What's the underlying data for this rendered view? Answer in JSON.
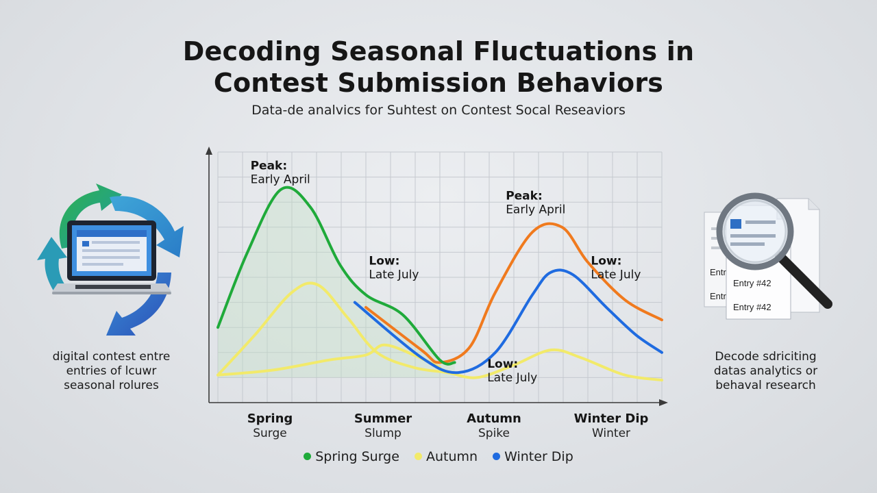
{
  "title_lines": [
    "Decoding Seasonal Fluctuations in",
    "Contest Submission Behaviors"
  ],
  "subtitle": "Data-de analvics for Suhtest on Contest Socal Reseaviors",
  "left_caption": [
    "digital contest entre",
    "entries of lcuwr",
    "seasonal rolures"
  ],
  "right_caption": [
    "Decode sdriciting",
    "datas analytics or",
    "behaval research"
  ],
  "icons": {
    "left": "laptop-cycle-icon",
    "right": "magnifier-documents-icon",
    "doc_labels": [
      "Entry #42",
      "Entry #42",
      "Entr",
      "Entr"
    ]
  },
  "colors": {
    "green": "#1faa3a",
    "yellow": "#f2ea6a",
    "orange": "#f07a1e",
    "blue": "#1f6be0",
    "axis": "#3a3a3a",
    "grid": "#c5c9cf"
  },
  "chart_data": {
    "type": "line",
    "xlabel": "",
    "ylabel": "",
    "grid": true,
    "categories": [
      {
        "line1": "Spring",
        "line2": "Surge"
      },
      {
        "line1": "Summer",
        "line2": "Slump"
      },
      {
        "line1": "Autumn",
        "line2": "Spike"
      },
      {
        "line1": "Winter Dip",
        "line2": "Winter"
      }
    ],
    "xlim": [
      0,
      12
    ],
    "ylim": [
      0,
      100
    ],
    "series": [
      {
        "name": "Spring Surge",
        "color": "#1faa3a",
        "points": [
          [
            0,
            30
          ],
          [
            0.8,
            60
          ],
          [
            1.7,
            85
          ],
          [
            2.5,
            78
          ],
          [
            3.3,
            55
          ],
          [
            4.0,
            43
          ],
          [
            5.0,
            35
          ],
          [
            6.0,
            17
          ],
          [
            6.4,
            16
          ]
        ]
      },
      {
        "name": "Autumn",
        "color": "#f2ea6a",
        "points": [
          [
            0,
            11
          ],
          [
            1.0,
            27
          ],
          [
            2.0,
            44
          ],
          [
            2.7,
            47
          ],
          [
            3.5,
            34
          ],
          [
            4.3,
            20
          ],
          [
            5.3,
            14
          ],
          [
            6.2,
            12
          ],
          [
            7.0,
            10
          ],
          [
            8.0,
            15
          ],
          [
            9.0,
            21
          ],
          [
            9.8,
            18
          ],
          [
            11.0,
            11
          ],
          [
            12.0,
            9
          ]
        ]
      },
      {
        "name": "",
        "color": "#f2ea6a",
        "points": [
          [
            0,
            11
          ],
          [
            1.5,
            13
          ],
          [
            3.0,
            17
          ],
          [
            4.0,
            19
          ],
          [
            4.5,
            23
          ],
          [
            5.3,
            19
          ],
          [
            6.0,
            14
          ]
        ]
      },
      {
        "name": "Winter Dip",
        "color": "#1f6be0",
        "points": [
          [
            3.7,
            40
          ],
          [
            5.5,
            18
          ],
          [
            6.5,
            12
          ],
          [
            7.5,
            20
          ],
          [
            8.5,
            43
          ],
          [
            9.0,
            52
          ],
          [
            9.6,
            51
          ],
          [
            10.5,
            38
          ],
          [
            11.3,
            27
          ],
          [
            12.0,
            20
          ]
        ]
      },
      {
        "name": "",
        "color": "#f07a1e",
        "points": [
          [
            4.0,
            38
          ],
          [
            5.5,
            21
          ],
          [
            6.0,
            16
          ],
          [
            6.8,
            22
          ],
          [
            7.5,
            44
          ],
          [
            8.5,
            68
          ],
          [
            9.3,
            70
          ],
          [
            10.0,
            56
          ],
          [
            11.0,
            41
          ],
          [
            12.0,
            33
          ]
        ]
      }
    ],
    "legend": [
      "Spring Surge",
      "Autumn",
      "Winter Dip"
    ],
    "annotations": [
      {
        "line1": "Peak:",
        "line2": "Early April",
        "x": 1.4,
        "y": 93
      },
      {
        "line1": "Low:",
        "line2": "Late July",
        "x": 4.6,
        "y": 55
      },
      {
        "line1": "Peak:",
        "line2": "Early April",
        "x": 8.3,
        "y": 81
      },
      {
        "line1": "Low:",
        "line2": "Late July",
        "x": 10.6,
        "y": 55
      },
      {
        "line1": "Low:",
        "line2": "Late July",
        "x": 7.8,
        "y": 14
      }
    ]
  }
}
